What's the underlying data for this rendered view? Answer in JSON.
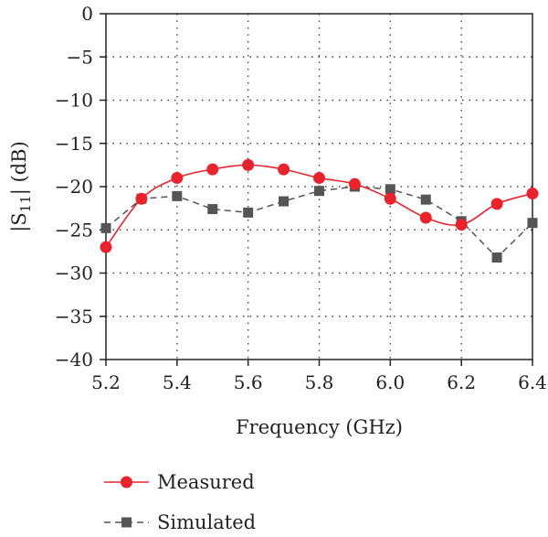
{
  "chart_data": {
    "type": "line",
    "xlabel": "Frequency (GHz)",
    "ylabel": {
      "prefix": "|S",
      "sub": "11",
      "suffix": "| (dB)"
    },
    "xlim": [
      5.2,
      6.4
    ],
    "ylim": [
      -40,
      0
    ],
    "x_ticks": [
      5.2,
      5.4,
      5.6,
      5.8,
      6.0,
      6.2,
      6.4
    ],
    "x_tick_labels": [
      "5.2",
      "5.4",
      "5.6",
      "5.8",
      "6.0",
      "6.2",
      "6.4"
    ],
    "y_ticks": [
      0,
      -5,
      -10,
      -15,
      -20,
      -25,
      -30,
      -35,
      -40
    ],
    "y_tick_labels": [
      "0",
      "−5",
      "−10",
      "−15",
      "−20",
      "−25",
      "−30",
      "−35",
      "−40"
    ],
    "grid": true,
    "legend_position": "bottom-left",
    "series": [
      {
        "name": "Measured",
        "color": "#e8232d",
        "marker": "circle",
        "line": "solid",
        "x": [
          5.2,
          5.3,
          5.4,
          5.5,
          5.6,
          5.7,
          5.8,
          5.9,
          6.0,
          6.1,
          6.2,
          6.3,
          6.4
        ],
        "y": [
          -27.0,
          -21.4,
          -19.0,
          -18.0,
          -17.5,
          -18.0,
          -19.0,
          -19.7,
          -21.4,
          -23.6,
          -24.4,
          -22.0,
          -20.8
        ]
      },
      {
        "name": "Simulated",
        "color": "#555555",
        "marker": "square",
        "line": "dashed",
        "x": [
          5.2,
          5.3,
          5.4,
          5.5,
          5.6,
          5.7,
          5.8,
          5.9,
          6.0,
          6.1,
          6.2,
          6.3,
          6.4
        ],
        "y": [
          -24.8,
          -21.4,
          -21.1,
          -22.6,
          -23.0,
          -21.7,
          -20.5,
          -20.0,
          -20.3,
          -21.5,
          -24.0,
          -28.2,
          -24.2
        ]
      }
    ]
  }
}
